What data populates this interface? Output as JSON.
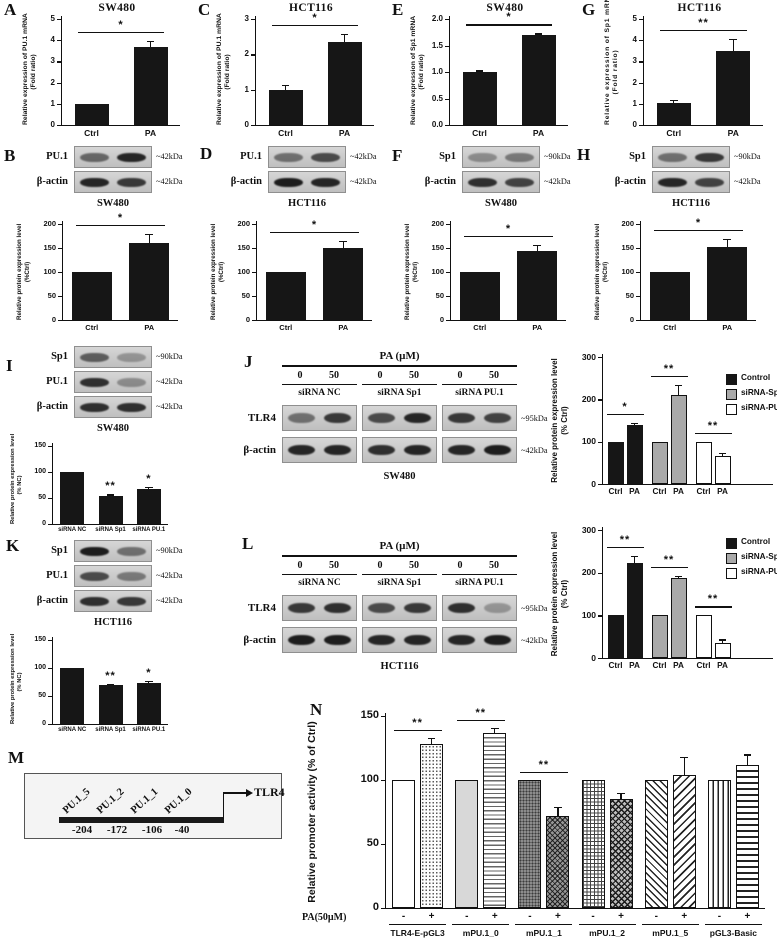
{
  "letters": {
    "A": "A",
    "B": "B",
    "C": "C",
    "D": "D",
    "E": "E",
    "F": "F",
    "G": "G",
    "H": "H",
    "I": "I",
    "J": "J",
    "K": "K",
    "L": "L",
    "M": "M",
    "N": "N"
  },
  "blots": {
    "B": {
      "rows": [
        {
          "label": "PU.1",
          "kda": "~42kDa",
          "bands": [
            0.55,
            0.9
          ]
        },
        {
          "label": "β-actin",
          "kda": "~42kDa",
          "bands": [
            0.9,
            0.8
          ]
        }
      ],
      "cell": "SW480"
    },
    "D": {
      "rows": [
        {
          "label": "PU.1",
          "kda": "~42kDa",
          "bands": [
            0.5,
            0.7
          ]
        },
        {
          "label": "β-actin",
          "kda": "~42kDa",
          "bands": [
            0.95,
            0.9
          ]
        }
      ],
      "cell": "HCT116"
    },
    "F": {
      "rows": [
        {
          "label": "Sp1",
          "kda": "~90kDa",
          "bands": [
            0.35,
            0.45
          ]
        },
        {
          "label": "β-actin",
          "kda": "~42kDa",
          "bands": [
            0.85,
            0.75
          ]
        }
      ],
      "cell": "SW480"
    },
    "H": {
      "rows": [
        {
          "label": "Sp1",
          "kda": "~90kDa",
          "bands": [
            0.5,
            0.8
          ]
        },
        {
          "label": "β-actin",
          "kda": "~42kDa",
          "bands": [
            0.9,
            0.75
          ]
        }
      ],
      "cell": "HCT116"
    },
    "I": {
      "rows": [
        {
          "label": "Sp1",
          "kda": "~90kDa",
          "bands": [
            0.6,
            0.3
          ]
        },
        {
          "label": "PU.1",
          "kda": "~42kDa",
          "bands": [
            0.85,
            0.35
          ]
        },
        {
          "label": "β-actin",
          "kda": "~42kDa",
          "bands": [
            0.85,
            0.85
          ]
        }
      ],
      "cell": "SW480"
    },
    "K": {
      "rows": [
        {
          "label": "Sp1",
          "kda": "~90kDa",
          "bands": [
            0.95,
            0.5
          ]
        },
        {
          "label": "PU.1",
          "kda": "~42kDa",
          "bands": [
            0.7,
            0.45
          ]
        },
        {
          "label": "β-actin",
          "kda": "~42kDa",
          "bands": [
            0.85,
            0.8
          ]
        }
      ],
      "cell": "HCT116"
    },
    "J": {
      "treatment_header": "PA (µM)",
      "doses": [
        "0",
        "50"
      ],
      "lanes": [
        "siRNA NC",
        "siRNA Sp1",
        "siRNA PU.1"
      ],
      "rows": [
        {
          "label": "TLR4",
          "kda": "~95kDa",
          "bands": [
            [
              0.5,
              0.8
            ],
            [
              0.7,
              0.9
            ],
            [
              0.8,
              0.75
            ]
          ]
        },
        {
          "label": "β-actin",
          "kda": "~42kDa",
          "bands": [
            [
              0.9,
              0.9
            ],
            [
              0.85,
              0.9
            ],
            [
              0.9,
              0.95
            ]
          ]
        }
      ],
      "cell": "SW480"
    },
    "L": {
      "treatment_header": "PA (µM)",
      "doses": [
        "0",
        "50"
      ],
      "lanes": [
        "siRNA NC",
        "siRNA Sp1",
        "siRNA PU.1"
      ],
      "rows": [
        {
          "label": "TLR4",
          "kda": "~95kDa",
          "bands": [
            [
              0.8,
              0.85
            ],
            [
              0.7,
              0.8
            ],
            [
              0.85,
              0.3
            ]
          ]
        },
        {
          "label": "β-actin",
          "kda": "~42kDa",
          "bands": [
            [
              0.95,
              0.95
            ],
            [
              0.9,
              0.9
            ],
            [
              0.9,
              0.95
            ]
          ]
        }
      ],
      "cell": "HCT116"
    }
  },
  "map": {
    "sites": [
      "PU.1_5",
      "PU.1_2",
      "PU.1_1",
      "PU.1_0"
    ],
    "positions": [
      "-204",
      "-172",
      "-106",
      "-40"
    ],
    "gene": "TLR4"
  },
  "chart_data": [
    {
      "id": "A",
      "type": "bar",
      "title": "SW480",
      "ylabel": [
        "Relative expression of PU.1 mRNA",
        "(Fold ratio)"
      ],
      "ylim": [
        0,
        5
      ],
      "yticks": [
        0,
        1,
        2,
        3,
        4,
        5
      ],
      "categories": [
        "Ctrl",
        "PA"
      ],
      "values": [
        1.0,
        3.7
      ],
      "errors": [
        0,
        0.27
      ],
      "sig": [
        {
          "from": 0,
          "to": 1,
          "label": "*"
        }
      ]
    },
    {
      "id": "C",
      "type": "bar",
      "title": "HCT116",
      "ylabel": [
        "Relative expression of PU.1 mRNA",
        "(Fold ratio)"
      ],
      "ylim": [
        0,
        3
      ],
      "yticks": [
        0,
        1,
        2,
        3
      ],
      "categories": [
        "Ctrl",
        "PA"
      ],
      "values": [
        1.0,
        2.35
      ],
      "errors": [
        0.13,
        0.22
      ],
      "sig": [
        {
          "from": 0,
          "to": 1,
          "label": "*"
        }
      ]
    },
    {
      "id": "E",
      "type": "bar",
      "title": "SW480",
      "ylabel": [
        "Relative expression of Sp1 mRNA",
        "(Fold ratio)"
      ],
      "ylim": [
        0,
        2
      ],
      "yticks": [
        0,
        0.5,
        1,
        1.5,
        2
      ],
      "ytick_labels": [
        "0.0",
        "0.5",
        "1.0",
        "1.5",
        "2.0"
      ],
      "categories": [
        "Ctrl",
        "PA"
      ],
      "values": [
        1.0,
        1.7
      ],
      "errors": [
        0.03,
        0.03
      ],
      "sig": [
        {
          "from": 0,
          "to": 1,
          "label": "*"
        }
      ]
    },
    {
      "id": "G",
      "type": "bar",
      "title": "HCT116",
      "ylabel": [
        "Relative expression of Sp1 mRNA",
        "(Fold ratio)"
      ],
      "ylim": [
        0,
        5
      ],
      "yticks": [
        0,
        1,
        2,
        3,
        4,
        5
      ],
      "categories": [
        "Ctrl",
        "PA"
      ],
      "values": [
        1.05,
        3.5
      ],
      "errors": [
        0.12,
        0.55
      ],
      "sig": [
        {
          "from": 0,
          "to": 1,
          "label": "**"
        }
      ]
    },
    {
      "id": "B",
      "type": "bar",
      "ylabel": [
        "Relative protein expression level",
        "(%Ctrl)"
      ],
      "ylim": [
        0,
        200
      ],
      "yticks": [
        0,
        50,
        100,
        150,
        200
      ],
      "categories": [
        "Ctrl",
        "PA"
      ],
      "values": [
        100,
        160
      ],
      "errors": [
        0,
        20
      ],
      "sig": [
        {
          "from": 0,
          "to": 1,
          "label": "*"
        }
      ]
    },
    {
      "id": "D",
      "type": "bar",
      "ylabel": [
        "Relative protein expression level",
        "(%Ctrl)"
      ],
      "ylim": [
        0,
        200
      ],
      "yticks": [
        0,
        50,
        100,
        150,
        200
      ],
      "categories": [
        "Ctrl",
        "PA"
      ],
      "values": [
        100,
        150
      ],
      "errors": [
        0,
        15
      ],
      "sig": [
        {
          "from": 0,
          "to": 1,
          "label": "*"
        }
      ]
    },
    {
      "id": "F",
      "type": "bar",
      "ylabel": [
        "Relative protein expression level",
        "(%Ctrl)"
      ],
      "ylim": [
        0,
        200
      ],
      "yticks": [
        0,
        50,
        100,
        150,
        200
      ],
      "categories": [
        "Ctrl",
        "PA"
      ],
      "values": [
        100,
        144
      ],
      "errors": [
        0,
        12
      ],
      "sig": [
        {
          "from": 0,
          "to": 1,
          "label": "*"
        }
      ]
    },
    {
      "id": "H",
      "type": "bar",
      "ylabel": [
        "Relative protein expression level",
        "(%Ctrl)"
      ],
      "ylim": [
        0,
        200
      ],
      "yticks": [
        0,
        50,
        100,
        150,
        200
      ],
      "categories": [
        "Ctrl",
        "PA"
      ],
      "values": [
        100,
        152
      ],
      "errors": [
        0,
        17
      ],
      "sig": [
        {
          "from": 0,
          "to": 1,
          "label": "*"
        }
      ]
    },
    {
      "id": "I",
      "type": "bar",
      "ylabel": [
        "Relative protein expression level",
        "(% NC)"
      ],
      "ylim": [
        0,
        150
      ],
      "yticks": [
        0,
        50,
        100,
        150
      ],
      "categories": [
        "siRNA NC",
        "siRNA Sp1",
        "siRNA PU.1"
      ],
      "values": [
        100,
        53,
        67
      ],
      "errors": [
        0,
        4,
        5
      ],
      "stars": [
        {
          "bar": 1,
          "label": "**"
        },
        {
          "bar": 2,
          "label": "*"
        }
      ]
    },
    {
      "id": "K",
      "type": "bar",
      "ylabel": [
        "Relative protein expression level",
        "(% NC)"
      ],
      "ylim": [
        0,
        150
      ],
      "yticks": [
        0,
        50,
        100,
        150
      ],
      "categories": [
        "siRNA NC",
        "siRNA Sp1",
        "siRNA PU.1"
      ],
      "values": [
        100,
        70,
        74
      ],
      "errors": [
        0,
        2,
        3
      ],
      "stars": [
        {
          "bar": 1,
          "label": "**"
        },
        {
          "bar": 2,
          "label": "*"
        }
      ]
    },
    {
      "id": "J",
      "type": "grouped_bar",
      "ylabel": [
        "Relative protein expression level",
        "(% Ctrl)"
      ],
      "ylim": [
        0,
        300
      ],
      "yticks": [
        0,
        100,
        200,
        300
      ],
      "group_categories": [
        "Ctrl",
        "PA"
      ],
      "groups": [
        {
          "name": "Control",
          "style": "black",
          "values": [
            100,
            140
          ],
          "errors": [
            0,
            4
          ],
          "sig": "*"
        },
        {
          "name": "siRNA-Sp1",
          "style": "gray",
          "values": [
            100,
            210
          ],
          "errors": [
            0,
            25
          ],
          "sig": "**"
        },
        {
          "name": "siRNA-PU.1",
          "style": "white",
          "values": [
            100,
            65
          ],
          "errors": [
            0,
            8
          ],
          "sig": "**"
        }
      ],
      "legend": [
        {
          "label": "Control",
          "style": "black"
        },
        {
          "label": "siRNA-Sp1",
          "style": "gray"
        },
        {
          "label": "siRNA-PU.1",
          "style": "white"
        }
      ]
    },
    {
      "id": "L",
      "type": "grouped_bar",
      "ylabel": [
        "Relative protein expression level",
        "(% Ctrl)"
      ],
      "ylim": [
        0,
        300
      ],
      "yticks": [
        0,
        100,
        200,
        300
      ],
      "group_categories": [
        "Ctrl",
        "PA"
      ],
      "groups": [
        {
          "name": "Control",
          "style": "black",
          "values": [
            100,
            222
          ],
          "errors": [
            0,
            18
          ],
          "sig": "**"
        },
        {
          "name": "siRNA-Sp1",
          "style": "gray",
          "values": [
            100,
            188
          ],
          "errors": [
            0,
            5
          ],
          "sig": "**"
        },
        {
          "name": "siRNA-PU.1",
          "style": "white",
          "values": [
            100,
            36
          ],
          "errors": [
            0,
            8
          ],
          "sig": "**"
        }
      ],
      "legend": [
        {
          "label": "Control",
          "style": "black"
        },
        {
          "label": "siRNA-Sp1",
          "style": "gray"
        },
        {
          "label": "siRNA-PU.1",
          "style": "white"
        }
      ]
    },
    {
      "id": "N",
      "type": "grouped_bar",
      "ylabel": [
        "Relative promoter activity (% of Ctrl)"
      ],
      "ylim": [
        0,
        150
      ],
      "yticks": [
        0,
        50,
        100,
        150
      ],
      "axis_row_label": "PA(50µM)",
      "groups": [
        {
          "name": "TLR4-E-pGL3",
          "signs": [
            "-",
            "+"
          ],
          "styles": [
            "solid-white",
            "dots"
          ],
          "values": [
            100,
            128
          ],
          "errors": [
            0,
            5
          ],
          "sig": "**"
        },
        {
          "name": "mPU.1_0",
          "signs": [
            "-",
            "+"
          ],
          "styles": [
            "solid-lightgray",
            "hlines-narrow"
          ],
          "values": [
            100,
            137
          ],
          "errors": [
            0,
            4
          ],
          "sig": "**"
        },
        {
          "name": "mPU.1_1",
          "signs": [
            "-",
            "+"
          ],
          "styles": [
            "dark-dots",
            "dark-cross"
          ],
          "values": [
            100,
            72
          ],
          "errors": [
            0,
            7
          ],
          "sig": "**"
        },
        {
          "name": "mPU.1_2",
          "signs": [
            "-",
            "+"
          ],
          "styles": [
            "grid",
            "diamond"
          ],
          "values": [
            100,
            85
          ],
          "errors": [
            0,
            5
          ]
        },
        {
          "name": "mPU.1_5",
          "signs": [
            "-",
            "+"
          ],
          "styles": [
            "diag-left",
            "diag-right"
          ],
          "values": [
            100,
            104
          ],
          "errors": [
            0,
            14
          ]
        },
        {
          "name": "pGL3-Basic",
          "signs": [
            "-",
            "+"
          ],
          "styles": [
            "vlines",
            "hlines-wide"
          ],
          "values": [
            100,
            112
          ],
          "errors": [
            0,
            8
          ]
        }
      ]
    }
  ]
}
